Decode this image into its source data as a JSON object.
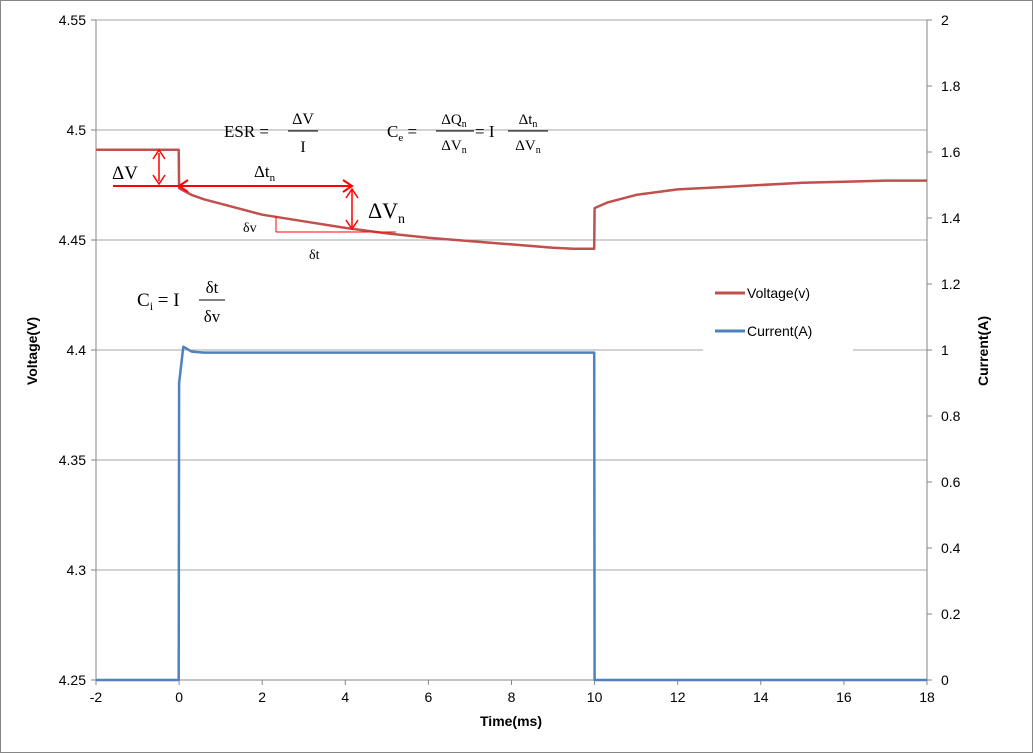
{
  "chart_data": {
    "type": "line",
    "xlabel": "Time(ms)",
    "ylabel": "Voltage(V)",
    "y2label": "Current(A)",
    "xlim": [
      -2,
      18
    ],
    "ylim": [
      4.25,
      4.55
    ],
    "y2lim": [
      0,
      2
    ],
    "grid": true,
    "legend_placement": "right",
    "x_ticks": [
      "-2",
      "0",
      "2",
      "4",
      "6",
      "8",
      "10",
      "12",
      "14",
      "16",
      "18"
    ],
    "y_ticks": [
      "4.25",
      "4.3",
      "4.35",
      "4.4",
      "4.45",
      "4.5",
      "4.55"
    ],
    "y2_ticks": [
      "0",
      "0.2",
      "0.4",
      "0.6",
      "0.8",
      "1",
      "1.2",
      "1.4",
      "1.6",
      "1.8",
      "2"
    ],
    "series": [
      {
        "name": "Voltage(v)",
        "axis": "left",
        "color": "#c0504d",
        "x": [
          -2,
          -1,
          -0.5,
          -0.01,
          0,
          0.3,
          0.6,
          1,
          1.5,
          2,
          3,
          4,
          5,
          6,
          7,
          8,
          9,
          9.5,
          9.99,
          10,
          10.3,
          11,
          12,
          13,
          14,
          15,
          16,
          17,
          18
        ],
        "y": [
          4.491,
          4.491,
          4.491,
          4.491,
          4.4735,
          4.4705,
          4.4685,
          4.4665,
          4.464,
          4.4615,
          4.4585,
          4.4555,
          4.453,
          4.451,
          4.4495,
          4.448,
          4.4465,
          4.446,
          4.446,
          4.4645,
          4.467,
          4.4705,
          4.473,
          4.474,
          4.475,
          4.476,
          4.4765,
          4.477,
          4.477
        ]
      },
      {
        "name": "Current(A)",
        "axis": "right",
        "color": "#4f81bd",
        "x": [
          -2,
          -0.01,
          0,
          0.1,
          0.3,
          0.6,
          2,
          4,
          6,
          8,
          9.99,
          10,
          12,
          14,
          16,
          18
        ],
        "y": [
          0,
          0,
          0.9,
          1.01,
          0.995,
          0.992,
          0.992,
          0.992,
          0.992,
          0.992,
          0.992,
          0,
          0,
          0,
          0,
          0
        ]
      }
    ],
    "annotations": {
      "esr_eq": {
        "lhs": "ESR = ",
        "num": "ΔV",
        "den": "I"
      },
      "ce_eq": {
        "lhs": "C",
        "lhs_sub": "e",
        "eq1": " = ",
        "num1": "ΔQ",
        "num1_sub": "n",
        "den1": "ΔV",
        "den1_sub": "n",
        "mid": " = I",
        "num2": "Δt",
        "num2_sub": "n",
        "den2": "ΔV",
        "den2_sub": "n"
      },
      "ci_eq": {
        "lhs": "C",
        "lhs_sub": "i",
        "mid": " = I",
        "num": "δt",
        "den": "δv"
      },
      "delta_v": "ΔV",
      "delta_tn": "Δt",
      "delta_tn_sub": "n",
      "delta_vn": "ΔV",
      "delta_vn_sub": "n",
      "small_dv": "δv",
      "small_dt": "δt"
    }
  }
}
